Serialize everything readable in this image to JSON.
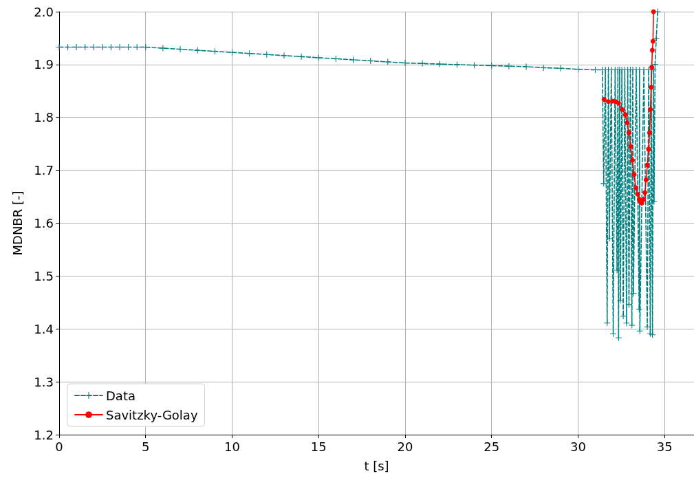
{
  "chart_data": {
    "type": "line",
    "xlabel": "t [s]",
    "ylabel": "MDNBR [-]",
    "xlim": [
      0,
      36.7
    ],
    "xticks": [
      0,
      5,
      10,
      15,
      20,
      25,
      30,
      35
    ],
    "ylim": [
      1.2,
      2.0
    ],
    "yticks": [
      1.2,
      1.3,
      1.4,
      1.5,
      1.6,
      1.7,
      1.8,
      1.9,
      {
        "value": 2.0,
        "label": "2.0"
      }
    ],
    "grid": true,
    "legend": "bottom left",
    "series": [
      {
        "name": "Data",
        "color": "#008080",
        "marker": "cross",
        "line_style": "dashed",
        "x": [
          0,
          0.5,
          1,
          1.5,
          2,
          2.5,
          3,
          3.5,
          4,
          4.5,
          5,
          6,
          7,
          8,
          9,
          10,
          11,
          12,
          13,
          14,
          15,
          16,
          17,
          18,
          19,
          20,
          21,
          22,
          23,
          24,
          25,
          26,
          27,
          28,
          29,
          30,
          31,
          31.4,
          31.48,
          31.58,
          31.68,
          31.75,
          31.81,
          31.92,
          32.03,
          32.14,
          32.25,
          32.3,
          32.34,
          32.4,
          32.45,
          32.53,
          32.61,
          32.7,
          32.8,
          32.87,
          32.94,
          33.02,
          33.11,
          33.16,
          33.2,
          33.36,
          33.53,
          33.55,
          33.57,
          33.8,
          34.0,
          34.08,
          34.17,
          34.23,
          34.3,
          34.35,
          34.39,
          34.45,
          34.52,
          34.6
        ],
        "values": [
          1.933,
          1.933,
          1.933,
          1.933,
          1.933,
          1.933,
          1.933,
          1.933,
          1.933,
          1.933,
          1.933,
          1.931,
          1.929,
          1.927,
          1.925,
          1.923,
          1.921,
          1.919,
          1.917,
          1.915,
          1.913,
          1.911,
          1.909,
          1.907,
          1.905,
          1.903,
          1.902,
          1.901,
          1.9,
          1.899,
          1.898,
          1.897,
          1.896,
          1.894,
          1.893,
          1.891,
          1.89,
          1.89,
          1.675,
          1.89,
          1.411,
          1.89,
          1.571,
          1.89,
          1.391,
          1.89,
          1.511,
          1.89,
          1.383,
          1.89,
          1.454,
          1.89,
          1.424,
          1.89,
          1.411,
          1.89,
          1.446,
          1.89,
          1.407,
          1.89,
          1.467,
          1.89,
          1.437,
          1.89,
          1.396,
          1.89,
          1.404,
          1.89,
          1.391,
          1.89,
          1.389,
          1.89,
          1.641,
          1.9,
          1.95,
          2.0
        ]
      },
      {
        "name": "Savitzky-Golay",
        "color": "#ff0000",
        "marker": "circle",
        "line_style": "solid",
        "x": [
          31.5,
          31.75,
          32.0,
          32.17,
          32.34,
          32.55,
          32.73,
          32.84,
          32.94,
          33.04,
          33.14,
          33.24,
          33.34,
          33.44,
          33.53,
          33.61,
          33.69,
          33.78,
          33.86,
          33.93,
          34.0,
          34.07,
          34.13,
          34.18,
          34.22,
          34.26,
          34.29,
          34.33,
          34.36
        ],
        "values": [
          1.834,
          1.83,
          1.831,
          1.83,
          1.827,
          1.815,
          1.805,
          1.79,
          1.771,
          1.745,
          1.719,
          1.692,
          1.667,
          1.655,
          1.645,
          1.64,
          1.638,
          1.645,
          1.658,
          1.682,
          1.71,
          1.74,
          1.771,
          1.815,
          1.857,
          1.895,
          1.927,
          1.944,
          2.0
        ]
      }
    ]
  }
}
